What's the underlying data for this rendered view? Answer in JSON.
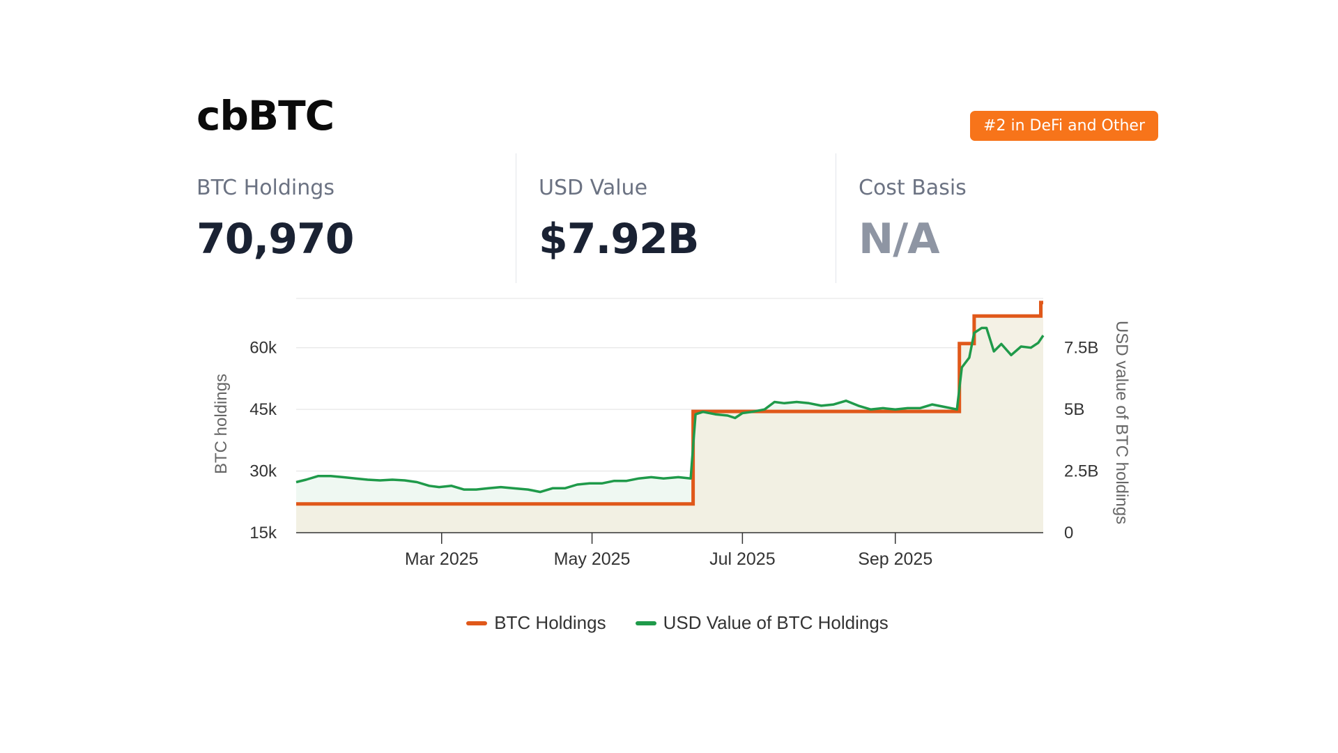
{
  "header": {
    "title": "cbBTC",
    "badge": "#2 in DeFi and Other"
  },
  "stats": [
    {
      "label": "BTC Holdings",
      "value": "70,970"
    },
    {
      "label": "USD Value",
      "value": "$7.92B"
    },
    {
      "label": "Cost Basis",
      "value": "N/A"
    }
  ],
  "colors": {
    "holdings": "#e0581a",
    "usd": "#1f9a4a",
    "badge": "#f7741a",
    "area": "#f2efe0"
  },
  "chart_data": {
    "type": "line",
    "x_axis": {
      "type": "date",
      "range": [
        "2025-01-01",
        "2025-10-31"
      ],
      "ticks": [
        {
          "date": "2025-03-01",
          "label": "Mar 2025"
        },
        {
          "date": "2025-05-01",
          "label": "May 2025"
        },
        {
          "date": "2025-07-01",
          "label": "Jul 2025"
        },
        {
          "date": "2025-09-01",
          "label": "Sep 2025"
        }
      ]
    },
    "y_left": {
      "label": "BTC holdings",
      "range": [
        15000,
        72000
      ],
      "ticks": [
        {
          "value": 15000,
          "label": "15k"
        },
        {
          "value": 30000,
          "label": "30k"
        },
        {
          "value": 45000,
          "label": "45k"
        },
        {
          "value": 60000,
          "label": "60k"
        }
      ]
    },
    "y_right": {
      "label": "USD value of BTC holdings",
      "range": [
        0,
        9500000000
      ],
      "ticks": [
        {
          "value": 0,
          "label": "0"
        },
        {
          "value": 2500000000,
          "label": "2.5B"
        },
        {
          "value": 5000000000,
          "label": "5B"
        },
        {
          "value": 7500000000,
          "label": "7.5B"
        }
      ]
    },
    "grid": true,
    "legend_position": "bottom-center",
    "series": [
      {
        "name": "BTC Holdings",
        "axis": "left",
        "shape": "step",
        "points": [
          [
            "2025-01-01",
            22000
          ],
          [
            "2025-06-11",
            22000
          ],
          [
            "2025-06-11",
            44500
          ],
          [
            "2025-09-27",
            44500
          ],
          [
            "2025-09-27",
            61000
          ],
          [
            "2025-10-03",
            61000
          ],
          [
            "2025-10-03",
            67700
          ],
          [
            "2025-10-30",
            67700
          ],
          [
            "2025-10-30",
            71000
          ],
          [
            "2025-10-31",
            71000
          ]
        ]
      },
      {
        "name": "USD Value of BTC Holdings",
        "axis": "right",
        "shape": "line",
        "points": [
          [
            "2025-01-01",
            2050000000
          ],
          [
            "2025-01-05",
            2150000000
          ],
          [
            "2025-01-10",
            2300000000
          ],
          [
            "2025-01-15",
            2300000000
          ],
          [
            "2025-01-20",
            2250000000
          ],
          [
            "2025-01-25",
            2200000000
          ],
          [
            "2025-01-30",
            2150000000
          ],
          [
            "2025-02-04",
            2120000000
          ],
          [
            "2025-02-09",
            2150000000
          ],
          [
            "2025-02-14",
            2120000000
          ],
          [
            "2025-02-19",
            2050000000
          ],
          [
            "2025-02-24",
            1900000000
          ],
          [
            "2025-02-28",
            1850000000
          ],
          [
            "2025-03-05",
            1900000000
          ],
          [
            "2025-03-10",
            1750000000
          ],
          [
            "2025-03-15",
            1750000000
          ],
          [
            "2025-03-20",
            1800000000
          ],
          [
            "2025-03-25",
            1850000000
          ],
          [
            "2025-03-30",
            1800000000
          ],
          [
            "2025-04-05",
            1750000000
          ],
          [
            "2025-04-10",
            1650000000
          ],
          [
            "2025-04-15",
            1800000000
          ],
          [
            "2025-04-20",
            1800000000
          ],
          [
            "2025-04-25",
            1950000000
          ],
          [
            "2025-04-30",
            2000000000
          ],
          [
            "2025-05-05",
            2000000000
          ],
          [
            "2025-05-10",
            2100000000
          ],
          [
            "2025-05-15",
            2100000000
          ],
          [
            "2025-05-20",
            2200000000
          ],
          [
            "2025-05-25",
            2250000000
          ],
          [
            "2025-05-30",
            2200000000
          ],
          [
            "2025-06-05",
            2250000000
          ],
          [
            "2025-06-10",
            2200000000
          ],
          [
            "2025-06-12",
            4800000000
          ],
          [
            "2025-06-15",
            4900000000
          ],
          [
            "2025-06-20",
            4800000000
          ],
          [
            "2025-06-25",
            4750000000
          ],
          [
            "2025-06-28",
            4650000000
          ],
          [
            "2025-07-01",
            4850000000
          ],
          [
            "2025-07-05",
            4900000000
          ],
          [
            "2025-07-10",
            5000000000
          ],
          [
            "2025-07-14",
            5300000000
          ],
          [
            "2025-07-18",
            5250000000
          ],
          [
            "2025-07-23",
            5300000000
          ],
          [
            "2025-07-28",
            5250000000
          ],
          [
            "2025-08-02",
            5150000000
          ],
          [
            "2025-08-07",
            5200000000
          ],
          [
            "2025-08-12",
            5350000000
          ],
          [
            "2025-08-17",
            5150000000
          ],
          [
            "2025-08-22",
            5000000000
          ],
          [
            "2025-08-27",
            5050000000
          ],
          [
            "2025-09-01",
            5000000000
          ],
          [
            "2025-09-06",
            5050000000
          ],
          [
            "2025-09-11",
            5050000000
          ],
          [
            "2025-09-16",
            5200000000
          ],
          [
            "2025-09-21",
            5100000000
          ],
          [
            "2025-09-26",
            5000000000
          ],
          [
            "2025-09-28",
            6700000000
          ],
          [
            "2025-10-01",
            7100000000
          ],
          [
            "2025-10-03",
            8100000000
          ],
          [
            "2025-10-06",
            8300000000
          ],
          [
            "2025-10-08",
            8300000000
          ],
          [
            "2025-10-11",
            7350000000
          ],
          [
            "2025-10-14",
            7650000000
          ],
          [
            "2025-10-18",
            7200000000
          ],
          [
            "2025-10-22",
            7550000000
          ],
          [
            "2025-10-26",
            7500000000
          ],
          [
            "2025-10-29",
            7700000000
          ],
          [
            "2025-10-31",
            8000000000
          ]
        ]
      }
    ]
  }
}
